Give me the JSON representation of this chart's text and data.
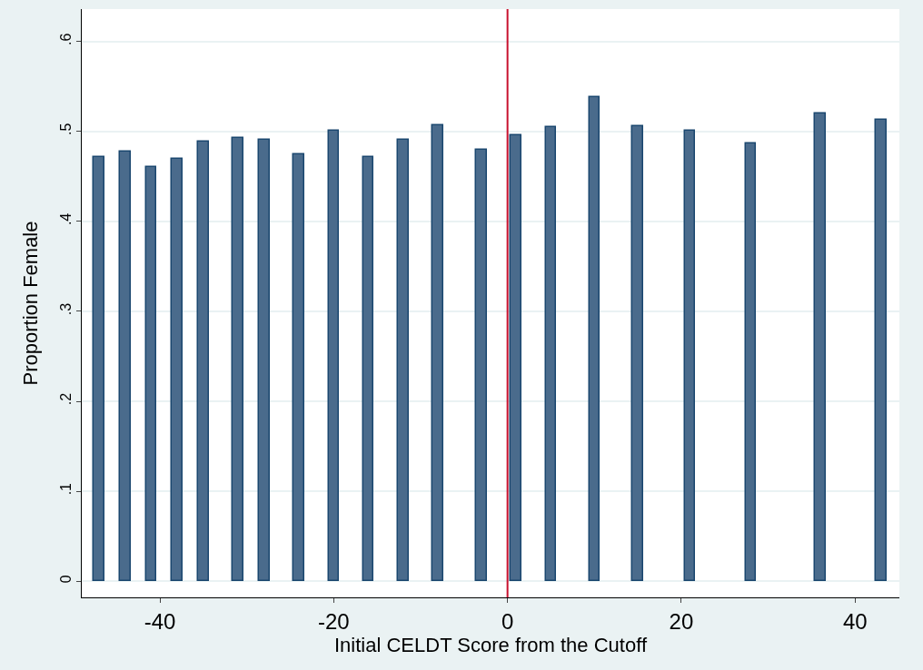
{
  "chart_data": {
    "type": "bar",
    "xlabel": "Initial CELDT Score from the Cutoff",
    "ylabel": "Proportion Female",
    "x": [
      -47,
      -44,
      -41,
      -38,
      -35,
      -31,
      -28,
      -24,
      -20,
      -16,
      -12,
      -8,
      -3,
      1,
      5,
      10,
      15,
      21,
      28,
      36,
      43
    ],
    "values": [
      0.472,
      0.478,
      0.46,
      0.469,
      0.489,
      0.493,
      0.491,
      0.475,
      0.501,
      0.472,
      0.491,
      0.507,
      0.48,
      0.496,
      0.505,
      0.538,
      0.506,
      0.501,
      0.487,
      0.52,
      0.513
    ],
    "color": "#4a6b8c",
    "xlim": [
      -49,
      45.1
    ],
    "xticks": [
      -40,
      -20,
      0,
      20,
      40
    ],
    "ylim": [
      -0.018,
      0.636
    ],
    "yticks": [
      {
        "value": 0,
        "label": "0"
      },
      {
        "value": 0.1,
        "label": ".1"
      },
      {
        "value": 0.2,
        "label": ".2"
      },
      {
        "value": 0.3,
        "label": ".3"
      },
      {
        "value": 0.4,
        "label": ".4"
      },
      {
        "value": 0.5,
        "label": ".5"
      },
      {
        "value": 0.6,
        "label": ".6"
      }
    ],
    "grid": "y",
    "ref_lines": [
      {
        "axis": "x",
        "value": 0,
        "color": "#c8102e"
      }
    ]
  }
}
